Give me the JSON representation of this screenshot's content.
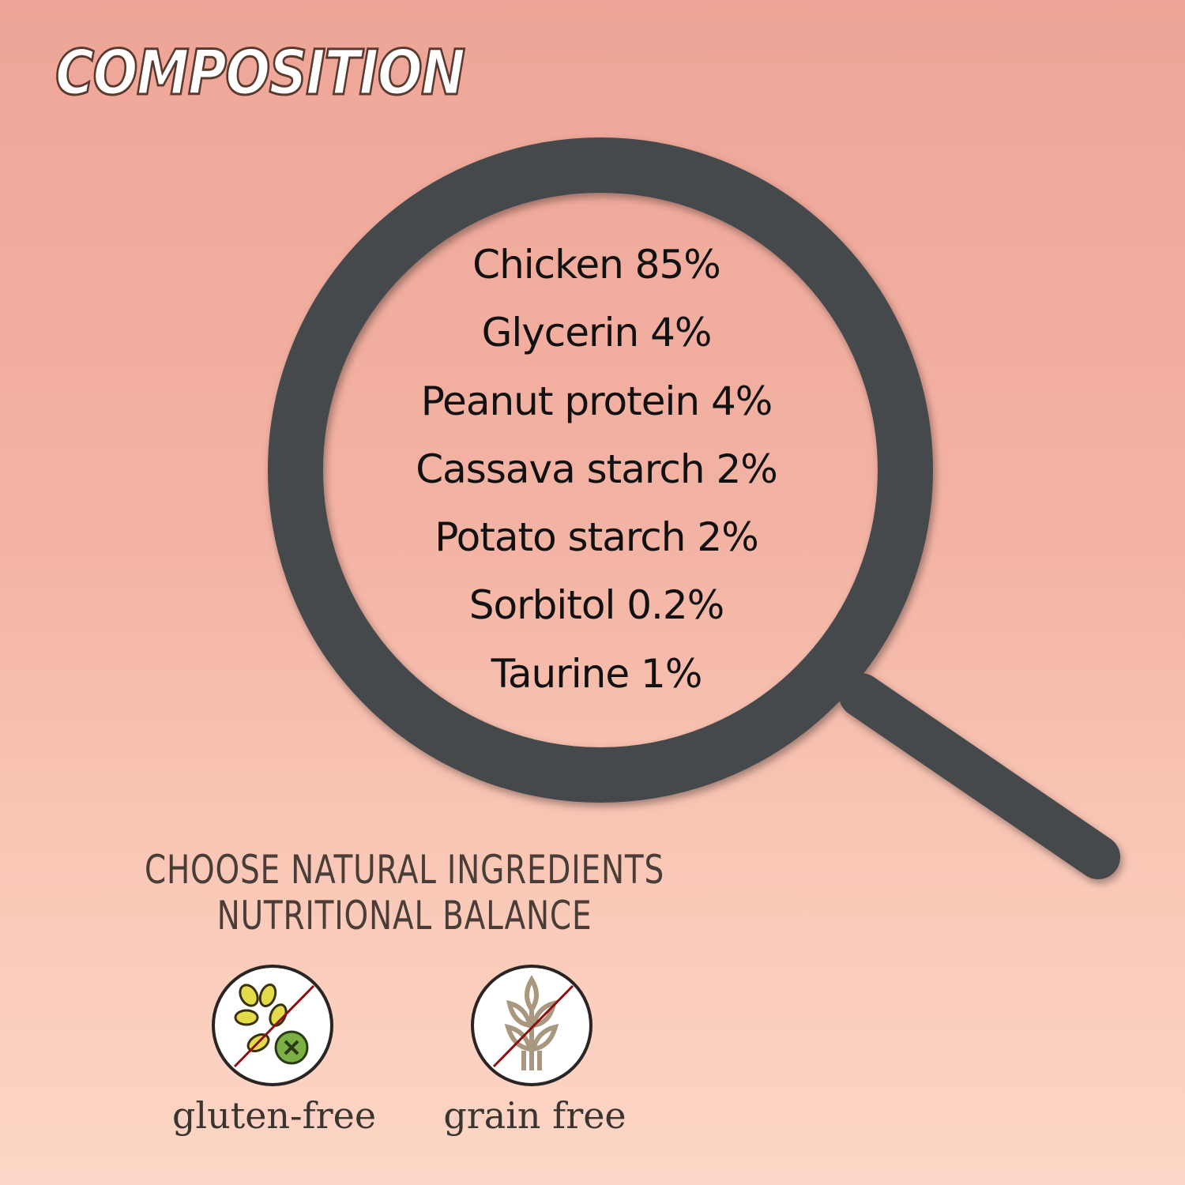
{
  "title": "COMPOSITION",
  "ingredients": [
    {
      "label": "Chicken 85%"
    },
    {
      "label": "Glycerin 4%"
    },
    {
      "label": "Peanut protein 4%"
    },
    {
      "label": "Cassava starch 2%"
    },
    {
      "label": "Potato starch 2%"
    },
    {
      "label": "Sorbitol 0.2%"
    },
    {
      "label": "Taurine 1%"
    }
  ],
  "tagline": {
    "line1": "CHOOSE NATURAL INGREDIENTS",
    "line2": "NUTRITIONAL BALANCE"
  },
  "badges": [
    {
      "label": "gluten-free",
      "icon": "no-gluten-icon"
    },
    {
      "label": "grain free",
      "icon": "no-grain-icon"
    }
  ],
  "colors": {
    "magnifier": "#45484c",
    "text": "#4a3d38",
    "slash": "#8b1010"
  }
}
